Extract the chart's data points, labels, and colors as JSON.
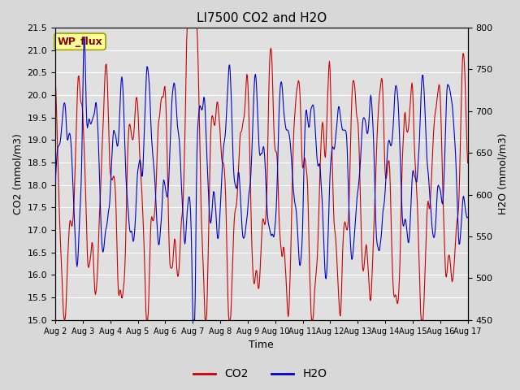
{
  "title": "LI7500 CO2 and H2O",
  "xlabel": "Time",
  "ylabel_left": "CO2 (mmol/m3)",
  "ylabel_right": "H2O (mmol/m3)",
  "ylim_left": [
    15.0,
    21.5
  ],
  "ylim_right": [
    450,
    800
  ],
  "yticks_left": [
    15.0,
    15.5,
    16.0,
    16.5,
    17.0,
    17.5,
    18.0,
    18.5,
    19.0,
    19.5,
    20.0,
    20.5,
    21.0,
    21.5
  ],
  "yticks_right": [
    450,
    500,
    550,
    600,
    650,
    700,
    750,
    800
  ],
  "xtick_labels": [
    "Aug 2",
    "Aug 3",
    "Aug 4",
    "Aug 5",
    "Aug 6",
    "Aug 7",
    "Aug 8",
    "Aug 9",
    "Aug 10",
    "Aug 11",
    "Aug 12",
    "Aug 13",
    "Aug 14",
    "Aug 15",
    "Aug 16",
    "Aug 17"
  ],
  "color_co2": "#cc0000",
  "color_h2o": "#0000cc",
  "fig_facecolor": "#d8d8d8",
  "plot_bg_color": "#e0e0e0",
  "annotation_text": "WP_flux",
  "annotation_bg": "#ffff99",
  "annotation_border": "#999900",
  "legend_co2": "CO2",
  "legend_h2o": "H2O",
  "figwidth": 6.4,
  "figheight": 4.8,
  "dpi": 100
}
